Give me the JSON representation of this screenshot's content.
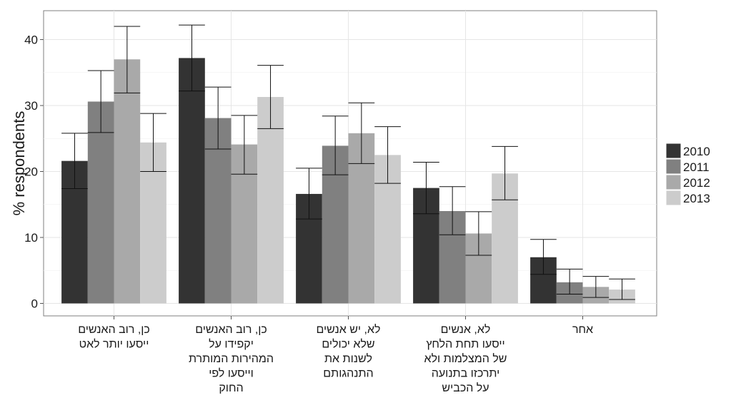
{
  "chart_data": {
    "type": "bar",
    "ylabel": "% respondents",
    "xlabel": "",
    "title": "",
    "ylim": [
      0,
      44
    ],
    "yticks": [
      0,
      10,
      20,
      30,
      40
    ],
    "grid": true,
    "legend_position": "right",
    "categories": [
      [
        "כן, רוב האנשים",
        "ייסעו יותר לאט"
      ],
      [
        "כן, רוב האנשים",
        "יקפידו על",
        "המהירות המותרת",
        "וייסעו לפי",
        "החוק"
      ],
      [
        "לא, יש אנשים",
        "שלא יכולים",
        "לשנות את",
        "התנהגותם"
      ],
      [
        "לא, אנשים",
        "ייסעו תחת הלחץ",
        "של המצלמות ולא",
        "יתרכזו בתנועה",
        "על הכביש"
      ],
      [
        "אחר"
      ]
    ],
    "series": [
      {
        "name": "2010",
        "color": "#333333",
        "values": [
          21.6,
          37.2,
          16.6,
          17.5,
          7.0
        ],
        "err_low": [
          17.4,
          32.2,
          12.8,
          13.6,
          4.4
        ],
        "err_high": [
          25.8,
          42.2,
          20.5,
          21.4,
          9.7
        ]
      },
      {
        "name": "2011",
        "color": "#808080",
        "values": [
          30.6,
          28.1,
          23.9,
          14.0,
          3.2
        ],
        "err_low": [
          25.9,
          23.4,
          19.5,
          10.4,
          1.4
        ],
        "err_high": [
          35.3,
          32.8,
          28.4,
          17.7,
          5.2
        ]
      },
      {
        "name": "2012",
        "color": "#a9a9a9",
        "values": [
          37.0,
          24.1,
          25.8,
          10.6,
          2.5
        ],
        "err_low": [
          31.9,
          19.6,
          21.2,
          7.3,
          0.9
        ],
        "err_high": [
          42.0,
          28.5,
          30.4,
          13.9,
          4.1
        ]
      },
      {
        "name": "2013",
        "color": "#cccccc",
        "values": [
          24.4,
          31.3,
          22.5,
          19.7,
          2.1
        ],
        "err_low": [
          20.0,
          26.5,
          18.2,
          15.7,
          0.6
        ],
        "err_high": [
          28.8,
          36.1,
          26.8,
          23.8,
          3.7
        ]
      }
    ]
  }
}
